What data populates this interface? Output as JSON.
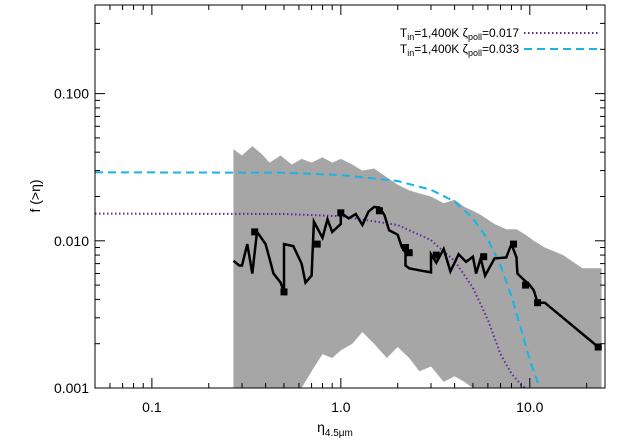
{
  "chart_data": {
    "type": "line",
    "x_scale": "log",
    "y_scale": "log",
    "xlim": [
      0.05,
      25
    ],
    "ylim": [
      0.001,
      0.4
    ],
    "xlabel": "η",
    "xlabel_sub": "4.5μm",
    "ylabel": "f (>η)",
    "x_ticks": [
      0.1,
      1.0,
      10.0
    ],
    "x_tick_labels": [
      "0.1",
      "1.0",
      "10.0"
    ],
    "y_ticks": [
      0.001,
      0.01,
      0.1
    ],
    "y_tick_labels": [
      "0.001",
      "0.010",
      "0.100"
    ],
    "grid": false,
    "legend_position": "top-right",
    "colors": {
      "observed": "#000000",
      "band": "#a6a6a6",
      "model_017": "#5b2a9e",
      "model_033": "#18b4e6"
    },
    "series": [
      {
        "name": "",
        "style": "band",
        "x": [
          0.27,
          0.3,
          0.34,
          0.38,
          0.42,
          0.48,
          0.55,
          0.62,
          0.7,
          0.8,
          0.9,
          1.0,
          1.15,
          1.3,
          1.5,
          1.75,
          2.0,
          2.3,
          2.6,
          3.0,
          3.5,
          4.0,
          4.5,
          5.0,
          5.5,
          6.5,
          7.5,
          8.5,
          9.5,
          10.5,
          12.0,
          15.0,
          19.0,
          24.0
        ],
        "upper": [
          0.042,
          0.038,
          0.044,
          0.039,
          0.034,
          0.038,
          0.033,
          0.036,
          0.034,
          0.037,
          0.034,
          0.036,
          0.033,
          0.03,
          0.031,
          0.027,
          0.024,
          0.022,
          0.021,
          0.02,
          0.018,
          0.019,
          0.017,
          0.016,
          0.015,
          0.013,
          0.012,
          0.012,
          0.011,
          0.01,
          0.009,
          0.008,
          0.0065,
          0.0065
        ],
        "lower": [
          0.001,
          0.001,
          0.001,
          0.001,
          0.001,
          0.001,
          0.001,
          0.001,
          0.0013,
          0.0017,
          0.0016,
          0.0018,
          0.002,
          0.0024,
          0.002,
          0.0016,
          0.0019,
          0.0016,
          0.0013,
          0.0014,
          0.0011,
          0.0012,
          0.0011,
          0.001,
          0.001,
          0.001,
          0.001,
          0.001,
          0.001,
          0.001,
          0.001,
          0.001,
          0.001,
          0.001
        ]
      },
      {
        "name": "",
        "style": "step-markers",
        "x": [
          0.27,
          0.29,
          0.3,
          0.32,
          0.34,
          0.36,
          0.4,
          0.44,
          0.48,
          0.5,
          0.5,
          0.56,
          0.62,
          0.65,
          0.7,
          0.72,
          0.8,
          0.85,
          0.9,
          1.0,
          1.0,
          1.1,
          1.2,
          1.3,
          1.4,
          1.5,
          1.6,
          1.7,
          1.8,
          2.0,
          2.1,
          2.2,
          2.2,
          2.3,
          2.6,
          3.0,
          3.0,
          3.2,
          3.5,
          3.8,
          4.2,
          4.6,
          5.0,
          5.2,
          5.5,
          5.8,
          6.5,
          7.5,
          8.0,
          8.5,
          8.6,
          9.2,
          10.0,
          10.5,
          11.0,
          12.0,
          23.0
        ],
        "y": [
          0.0073,
          0.0068,
          0.0068,
          0.0095,
          0.006,
          0.0115,
          0.0095,
          0.006,
          0.0052,
          0.0045,
          0.0095,
          0.0092,
          0.007,
          0.0052,
          0.0058,
          0.0135,
          0.0105,
          0.014,
          0.0115,
          0.013,
          0.0155,
          0.0142,
          0.0152,
          0.0128,
          0.0158,
          0.017,
          0.0168,
          0.015,
          0.0118,
          0.011,
          0.0091,
          0.0083,
          0.0068,
          0.0065,
          0.0063,
          0.0061,
          0.0081,
          0.0071,
          0.0088,
          0.0062,
          0.0081,
          0.0072,
          0.0078,
          0.006,
          0.0076,
          0.0058,
          0.0076,
          0.0077,
          0.0095,
          0.0077,
          0.006,
          0.0055,
          0.005,
          0.0046,
          0.0038,
          0.0038,
          0.0019
        ],
        "markers_x": [
          0.35,
          0.5,
          0.75,
          1.0,
          1.6,
          2.2,
          2.3,
          3.2,
          5.7,
          8.2,
          9.5,
          11.0,
          23.0
        ],
        "markers_y": [
          0.0115,
          0.0045,
          0.0095,
          0.0155,
          0.016,
          0.009,
          0.0083,
          0.008,
          0.0078,
          0.0095,
          0.005,
          0.0038,
          0.0019
        ]
      },
      {
        "name": "T_in=1,400K ζ_poll=0.017",
        "style": "dotted",
        "x": [
          0.05,
          0.5,
          1.0,
          2.0,
          3.0,
          4.0,
          5.0,
          6.0,
          7.0,
          8.0,
          9.0,
          10.0
        ],
        "y": [
          0.0153,
          0.0152,
          0.0147,
          0.0128,
          0.0101,
          0.0073,
          0.0048,
          0.0029,
          0.0017,
          0.00125,
          0.00105,
          0.00095
        ]
      },
      {
        "name": "T_in=1,400K ζ_poll=0.033",
        "style": "dashed",
        "x": [
          0.05,
          0.5,
          1.0,
          2.0,
          3.0,
          4.0,
          5.0,
          6.0,
          7.0,
          8.0,
          9.0,
          10.0,
          11.0,
          12.0
        ],
        "y": [
          0.0292,
          0.029,
          0.028,
          0.0255,
          0.0222,
          0.0185,
          0.0142,
          0.0102,
          0.0068,
          0.0042,
          0.0025,
          0.00155,
          0.0011,
          0.00085
        ]
      }
    ],
    "legend": [
      {
        "main": "T",
        "sub1": "in",
        "mid": "=1,400K ζ",
        "sub2": "poll",
        "tail": "=0.017",
        "style": "dotted"
      },
      {
        "main": "T",
        "sub1": "in",
        "mid": "=1,400K ζ",
        "sub2": "poll",
        "tail": "=0.033",
        "style": "dashed"
      }
    ]
  }
}
